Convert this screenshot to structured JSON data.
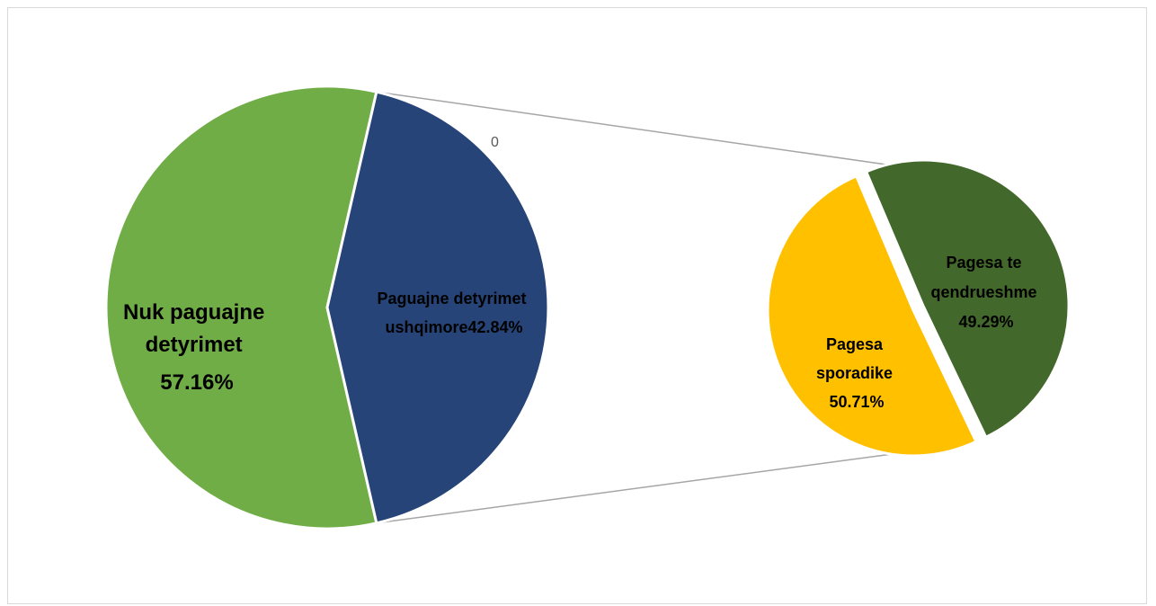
{
  "chart_data": {
    "type": "pie",
    "subtype": "pie-of-pie",
    "main_pie": {
      "slices": [
        {
          "label_lines": [
            "Nuk paguajne",
            "detyrimet",
            "57.16%"
          ],
          "value": 57.16,
          "color": "#70AD47"
        },
        {
          "label_lines": [
            "Paguajne detyrimet",
            "ushqimore42.84%"
          ],
          "value": 42.84,
          "color": "#264478"
        }
      ]
    },
    "secondary_pie": {
      "slices": [
        {
          "label_lines": [
            "Pagesa te",
            "qendrueshme",
            "49.29%"
          ],
          "value": 49.29,
          "color": "#43682B"
        },
        {
          "label_lines": [
            "Pagesa",
            "sporadike",
            "50.71%"
          ],
          "value": 50.71,
          "color": "#FFC000"
        }
      ]
    },
    "connector_label": "0",
    "legend": "none"
  }
}
